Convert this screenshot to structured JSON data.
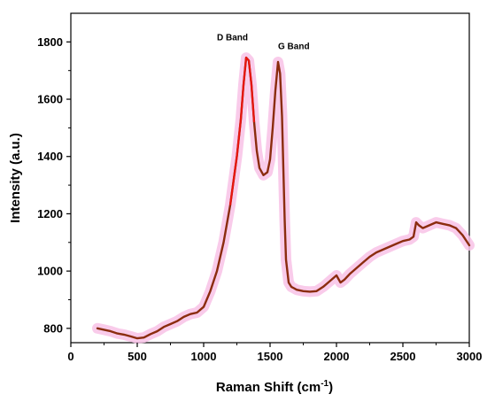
{
  "chart_data": {
    "type": "line",
    "xlabel": "Raman Shift (cm",
    "xlabel_sup": "-1",
    "xlabel_close": ")",
    "ylabel": "Intensity (a.u.)",
    "xlim": [
      0,
      3000
    ],
    "ylim": [
      750,
      1900
    ],
    "xticks": [
      "0",
      "500",
      "1000",
      "1500",
      "2000",
      "2500",
      "3000"
    ],
    "yticks": [
      "800",
      "1000",
      "1200",
      "1400",
      "1600",
      "1800"
    ],
    "grid": false,
    "annotations": [
      {
        "text": "D Band",
        "x": 1100,
        "y": 1805
      },
      {
        "text": "G Band",
        "x": 1560,
        "y": 1775
      }
    ],
    "line_color": "#8B2C0E",
    "glow_color": "#F8C2E6",
    "peak_color": "#E8160F",
    "series": [
      {
        "x": [
          200,
          250,
          300,
          350,
          400,
          450,
          500,
          550,
          600,
          650,
          700,
          750,
          800,
          850,
          900,
          950,
          1000,
          1050,
          1100,
          1150,
          1200,
          1250,
          1280,
          1300,
          1320,
          1340,
          1360,
          1380,
          1400,
          1420,
          1450,
          1480,
          1500,
          1520,
          1540,
          1560,
          1575,
          1590,
          1600,
          1610,
          1620,
          1640,
          1660,
          1680,
          1700,
          1750,
          1800,
          1850,
          1900,
          1950,
          2000,
          2030,
          2060,
          2100,
          2150,
          2200,
          2250,
          2300,
          2350,
          2400,
          2450,
          2500,
          2550,
          2580,
          2600,
          2620,
          2650,
          2700,
          2750,
          2800,
          2850,
          2900,
          2950,
          3000
        ],
        "y": [
          800,
          795,
          790,
          782,
          778,
          772,
          765,
          768,
          780,
          790,
          805,
          815,
          825,
          840,
          850,
          855,
          875,
          930,
          1000,
          1100,
          1230,
          1400,
          1530,
          1650,
          1745,
          1735,
          1650,
          1520,
          1420,
          1360,
          1335,
          1345,
          1390,
          1500,
          1630,
          1730,
          1690,
          1540,
          1360,
          1180,
          1040,
          960,
          945,
          940,
          935,
          930,
          928,
          930,
          945,
          965,
          985,
          960,
          970,
          990,
          1010,
          1030,
          1050,
          1065,
          1075,
          1085,
          1095,
          1105,
          1110,
          1120,
          1170,
          1160,
          1150,
          1160,
          1170,
          1165,
          1160,
          1150,
          1125,
          1090
        ]
      }
    ]
  }
}
